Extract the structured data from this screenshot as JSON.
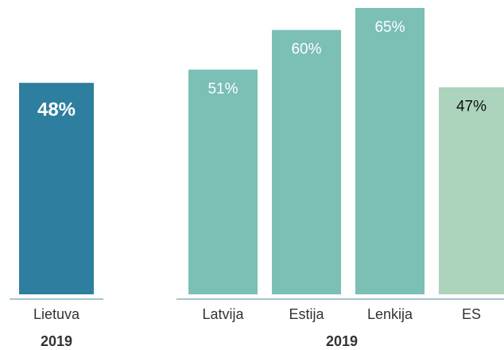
{
  "chart_data": [
    {
      "type": "bar",
      "categories": [
        "Lietuva"
      ],
      "values": [
        48
      ],
      "value_labels": [
        "48%"
      ],
      "colors": [
        "#2e7f9f"
      ],
      "label_colors": [
        "#ffffff"
      ],
      "xlabel": "2019"
    },
    {
      "type": "bar",
      "categories": [
        "Latvija",
        "Estija",
        "Lenkija",
        "ES"
      ],
      "values": [
        51,
        60,
        65,
        47
      ],
      "value_labels": [
        "51%",
        "60%",
        "65%",
        "47%"
      ],
      "colors": [
        "#7bbfb5",
        "#7bbfb5",
        "#7bbfb5",
        "#acd3bb"
      ],
      "label_colors": [
        "#ffffff",
        "#ffffff",
        "#ffffff",
        "#111111"
      ],
      "xlabel": "2019"
    }
  ]
}
